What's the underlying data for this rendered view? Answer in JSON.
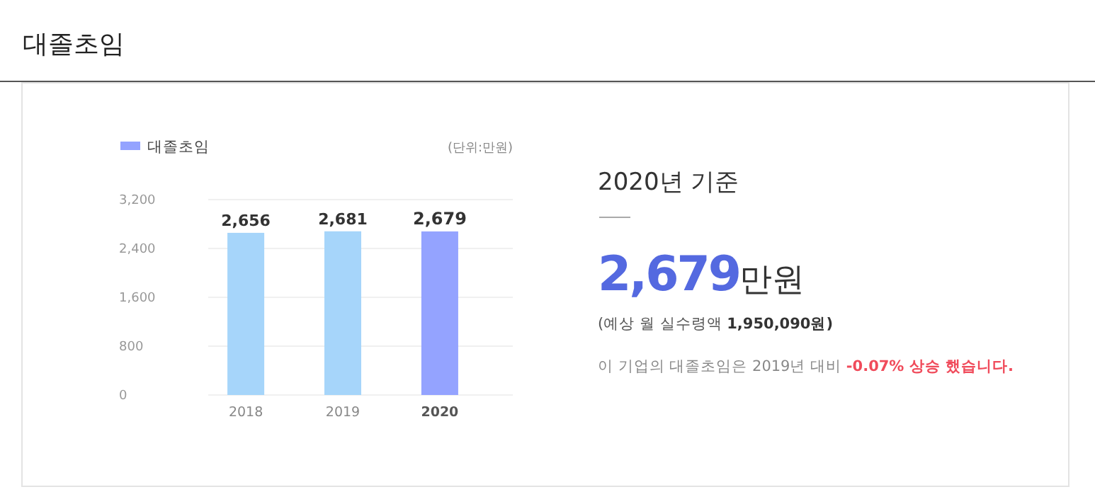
{
  "chart_data": {
    "type": "bar",
    "title": "대졸초임",
    "categories": [
      "2018",
      "2019",
      "2020"
    ],
    "series": [
      {
        "name": "대졸초임",
        "color": "#94a3ff",
        "colors": [
          "#a6d5fa",
          "#a6d5fa",
          "#94a3ff"
        ],
        "values": [
          2656,
          2681,
          2679
        ],
        "value_labels": [
          "2,656",
          "2,681",
          "2,679"
        ]
      }
    ],
    "ylim": [
      0,
      3200
    ],
    "yticks": [
      {
        "value": 0,
        "label": "0"
      },
      {
        "value": 800,
        "label": "800"
      },
      {
        "value": 1600,
        "label": "1,600"
      },
      {
        "value": 2400,
        "label": "2,400"
      },
      {
        "value": 3200,
        "label": "3,200"
      }
    ],
    "grid": "y",
    "legend": "top left",
    "annotations": [
      "(단위:만원)",
      "2020년 기준",
      "2,679",
      "만원",
      "(예상 월 실수령액 ",
      "1,950,090원)",
      "이 기업의 대졸초임은 2019년 대비 ",
      "-0.07% 상승 했습니다."
    ]
  }
}
